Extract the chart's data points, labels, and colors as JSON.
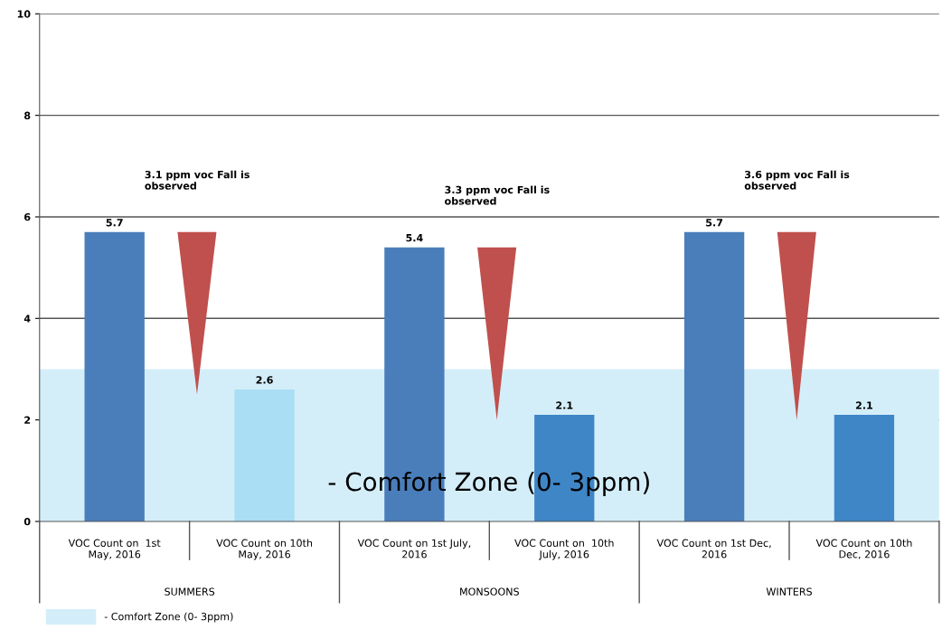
{
  "chart_data": {
    "type": "bar",
    "categories": [
      "VOC Count on  1st\nMay, 2016",
      "VOC Count on 10th\nMay, 2016",
      "VOC Count on 1st July,\n2016",
      "VOC Count on  10th\nJuly, 2016",
      "VOC Count on 1st Dec,\n2016",
      "VOC Count on 10th\nDec, 2016"
    ],
    "values": [
      5.7,
      2.6,
      5.4,
      2.1,
      5.7,
      2.1
    ],
    "colors": [
      "#4a7ebb",
      "#a9def4",
      "#4a7ebb",
      "#3f86c7",
      "#4a7ebb",
      "#3f86c7"
    ],
    "data_labels": true,
    "ylim": [
      0,
      10
    ],
    "yticks": [
      0,
      2,
      4,
      6,
      8,
      10
    ],
    "grid": "y",
    "bands": [
      {
        "axis": "y",
        "from": 0,
        "to": 3,
        "label": "- Comfort Zone (0- 3ppm)",
        "color": "#d4eef9"
      }
    ],
    "legend": "bottom left",
    "annotations": [
      "3.1 ppm voc Fall is\nobserved",
      "3.3 ppm voc Fall is\nobserved",
      "3.6 ppm voc Fall is\nobserved",
      "SUMMERS",
      "MONSOONS",
      "WINTERS",
      "- Comfort Zone (0- 3ppm)"
    ]
  }
}
